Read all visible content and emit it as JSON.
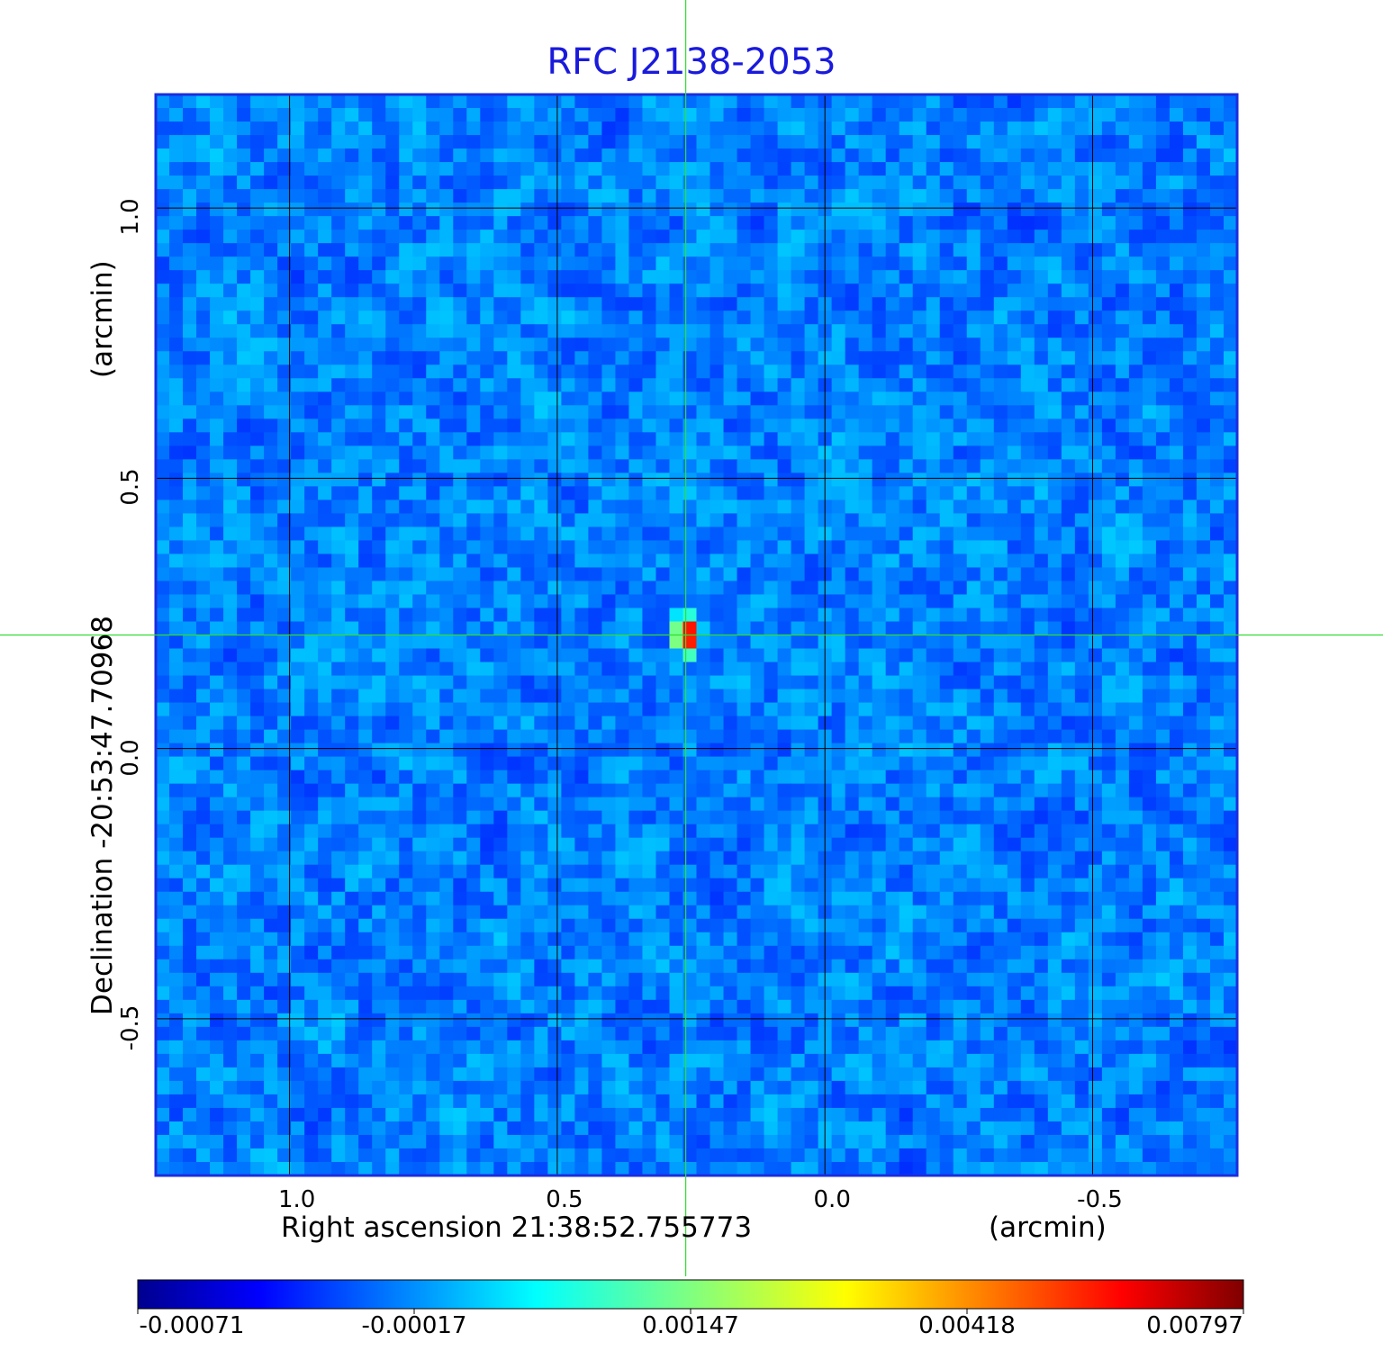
{
  "chart_data": {
    "type": "heatmap",
    "title": "RFC J2138-2053",
    "xlabel": "Right ascension  21:38:52.755773",
    "xunit": "(arcmin)",
    "ylabel": "Declination  -20:53:47.70968",
    "yunit": "(arcmin)",
    "xlim": [
      1.25,
      -0.77
    ],
    "ylim": [
      -0.79,
      1.21
    ],
    "x_ticks": [
      {
        "value": 1.0,
        "label": "1.0"
      },
      {
        "value": 0.5,
        "label": "0.5"
      },
      {
        "value": 0.0,
        "label": "0.0"
      },
      {
        "value": -0.5,
        "label": "-0.5"
      }
    ],
    "y_ticks": [
      {
        "value": 1.0,
        "label": "1.0"
      },
      {
        "value": 0.5,
        "label": "0.5"
      },
      {
        "value": 0.0,
        "label": "0.0"
      },
      {
        "value": -0.5,
        "label": "-0.5"
      }
    ],
    "grid": true,
    "colormap": "jet",
    "colorbar": {
      "position": "bottom",
      "min": -0.00071,
      "max": 0.00797,
      "ticks": [
        "-0.00071",
        "-0.00017",
        "0.00147",
        "0.00418",
        "0.00797"
      ]
    },
    "source": {
      "x": 0.26,
      "y": 0.21,
      "peak": 0.00797
    },
    "crosshair": {
      "x": 0.26,
      "y": 0.21,
      "color": "#33dd33"
    }
  }
}
